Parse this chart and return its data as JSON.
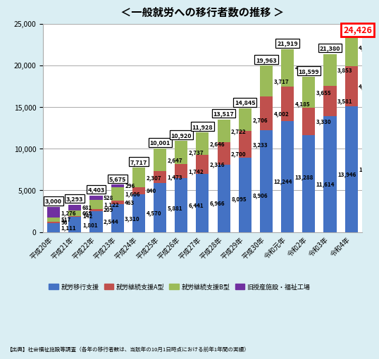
{
  "title": "＜一般就労への移行者数の推移 >",
  "years": [
    "平成20年",
    "平成21年",
    "平成22年",
    "平成23年",
    "平成24年",
    "平成25年",
    "平成26年",
    "平成27年",
    "平成28年",
    "平成29年",
    "平成30年",
    "令和元年",
    "令和2年",
    "令和3年",
    "令和4年"
  ],
  "blue": [
    1111,
    1801,
    2544,
    3310,
    4570,
    5881,
    6441,
    6966,
    8095,
    8906,
    12244,
    13288,
    11614,
    13946,
    15094
  ],
  "red": [
    96,
    142,
    209,
    463,
    840,
    1473,
    1742,
    2316,
    2700,
    3233,
    4002,
    4185,
    3330,
    3581,
    4818
  ],
  "green": [
    517,
    669,
    1122,
    1606,
    2307,
    2647,
    2737,
    2646,
    2722,
    2706,
    3717,
    4446,
    3655,
    3853,
    4514
  ],
  "purple": [
    1276,
    681,
    528,
    296,
    0,
    0,
    0,
    0,
    0,
    0,
    0,
    0,
    0,
    0,
    0
  ],
  "totals": [
    3000,
    3293,
    4403,
    5675,
    7717,
    10001,
    10920,
    11928,
    13517,
    14845,
    19963,
    21919,
    18599,
    21380,
    24426
  ],
  "color_blue": "#4472C4",
  "color_red": "#C0504D",
  "color_green": "#9BBB59",
  "color_purple": "#7030A0",
  "yticks": [
    0,
    5000,
    10000,
    15000,
    20000,
    25000
  ],
  "legend_labels": [
    "就労移行支援",
    "就労継続支援A型",
    "就労継続支援B型",
    "旧授産施設・福祉工場"
  ],
  "source": "》出典「社会福祉施設等調査（各年の移行者数は、当該年の10月1日時点における前年1年間の実績）",
  "bg_color": "#DAEEF3",
  "plot_bg": "#FFFFFF"
}
